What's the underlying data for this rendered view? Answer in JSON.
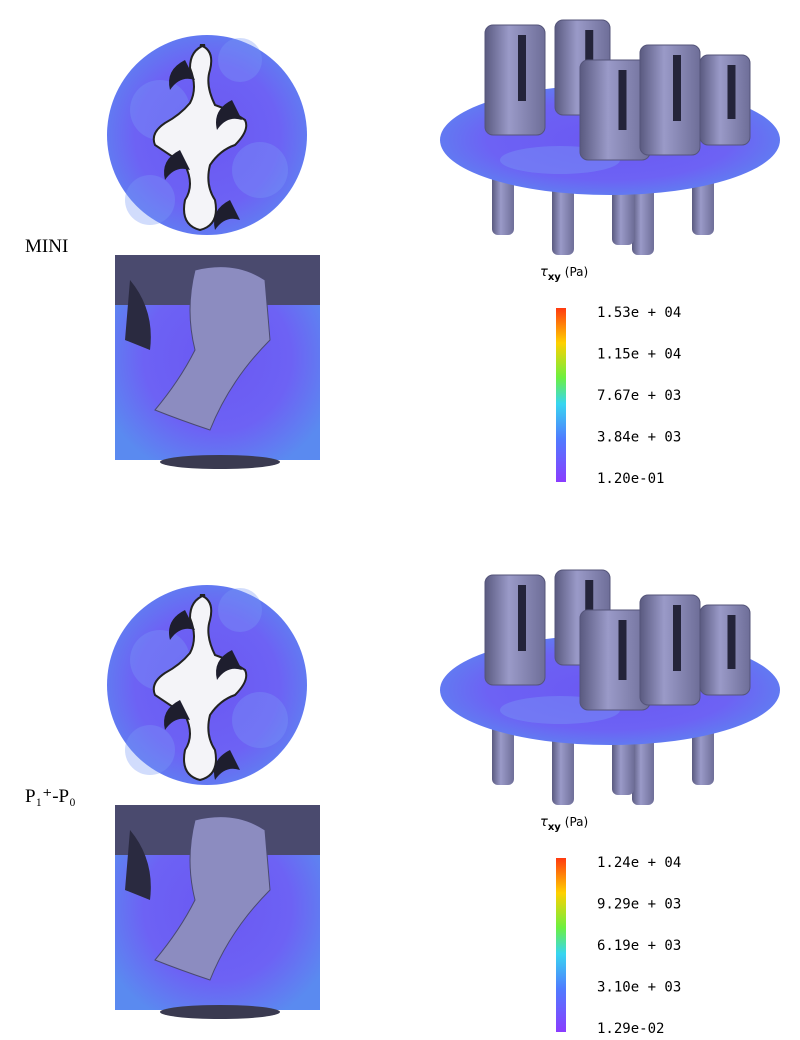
{
  "panels": [
    {
      "label": "MINI",
      "colorbar": {
        "symbol": "τ",
        "subscript": "xy",
        "unit": "(Pa)",
        "ticks": [
          "1.53e + 04",
          "1.15e + 04",
          "7.67e + 03",
          "3.84e + 03",
          "1.20e-01"
        ]
      }
    },
    {
      "label": "P₁⁺-P₀",
      "colorbar": {
        "symbol": "τ",
        "subscript": "xy",
        "unit": "(Pa)",
        "ticks": [
          "1.24e + 04",
          "9.29e + 03",
          "6.19e + 03",
          "3.10e + 03",
          "1.29e-02"
        ]
      }
    }
  ]
}
